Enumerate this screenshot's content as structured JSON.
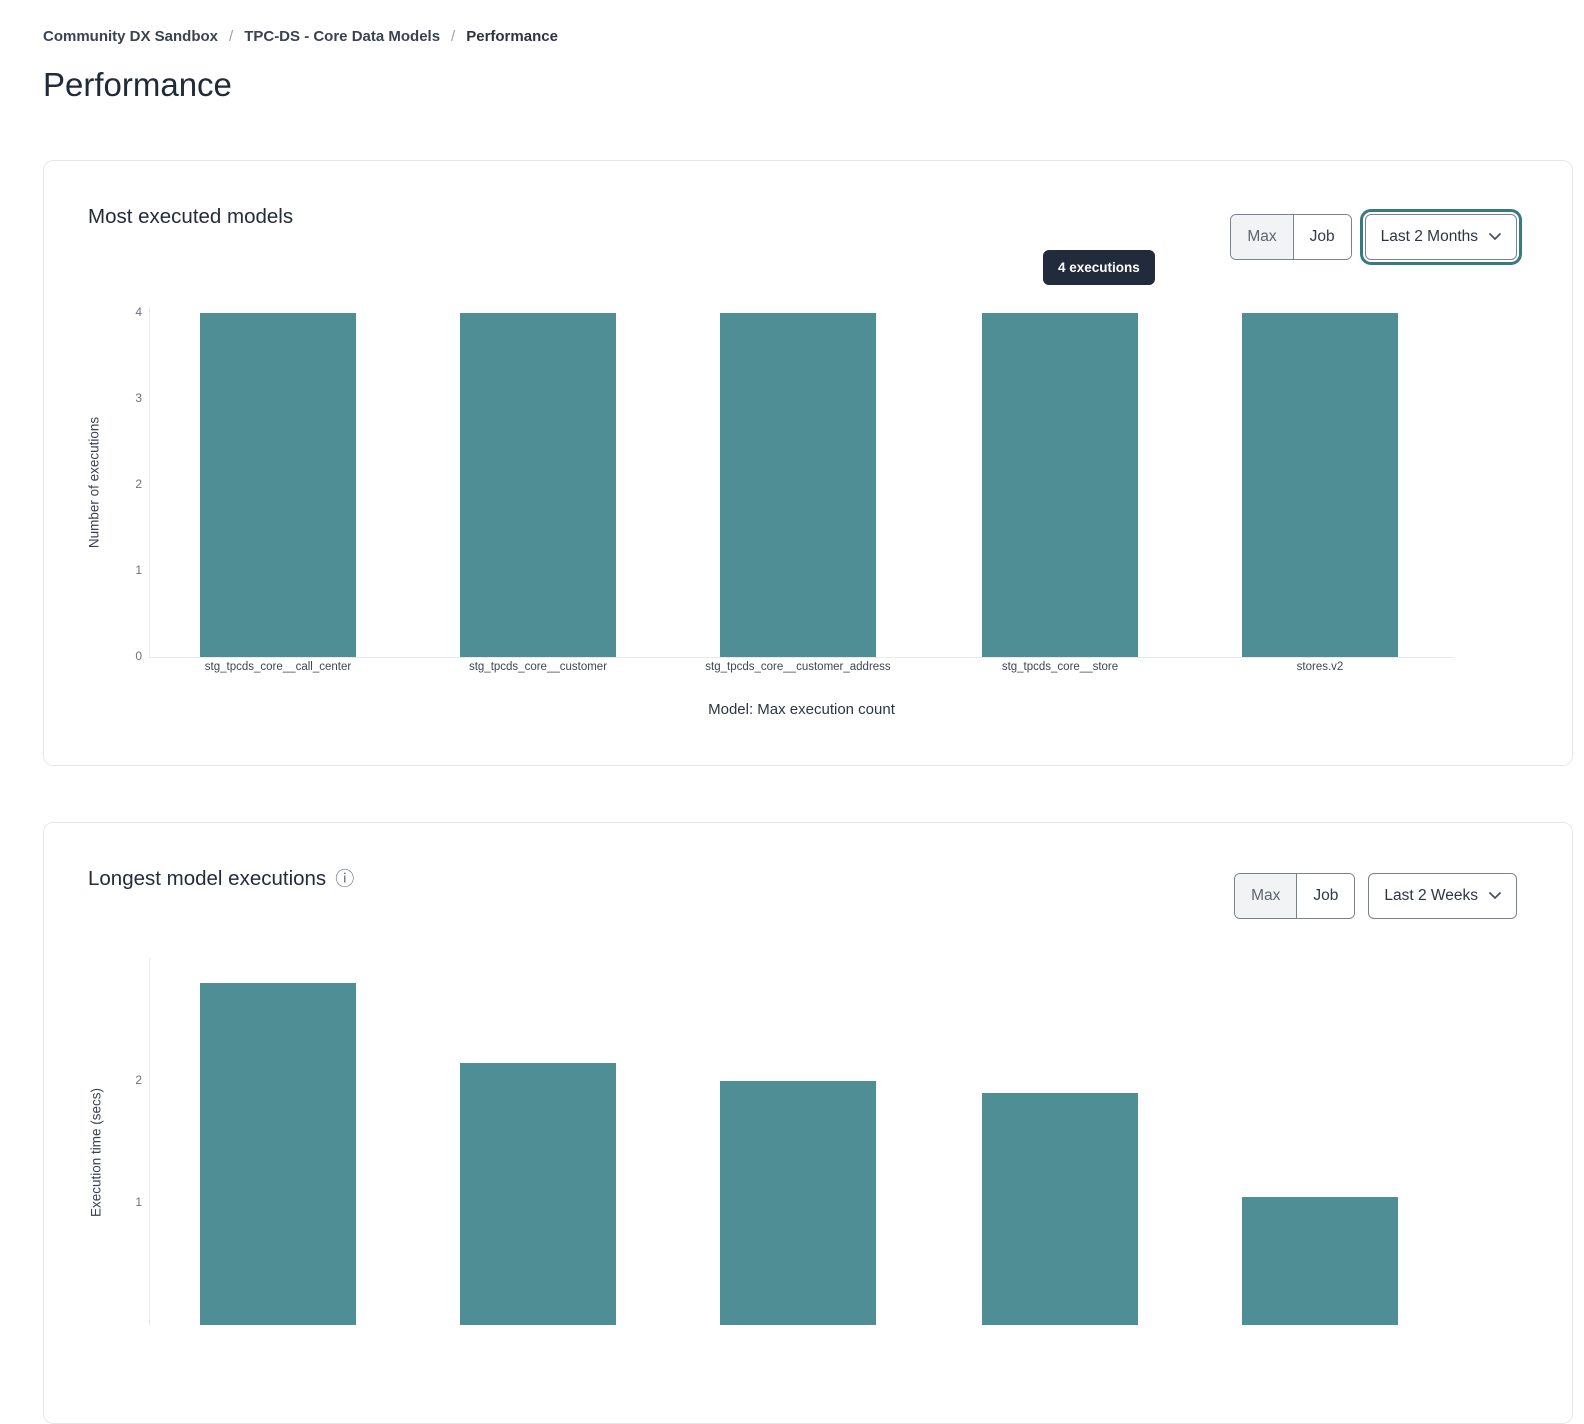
{
  "breadcrumb": {
    "separator": "/",
    "items": [
      "Community DX Sandbox",
      "TPC-DS - Core Data Models",
      "Performance"
    ]
  },
  "page": {
    "title": "Performance"
  },
  "cards": [
    {
      "title": "Most executed models",
      "toggle": {
        "options": [
          "Max",
          "Job"
        ],
        "selected": "Max"
      },
      "period_select": {
        "value": "Last 2 Months",
        "state": "focused"
      },
      "tooltip": "4 executions"
    },
    {
      "title": "Longest model executions",
      "info_icon": "ⓘ",
      "toggle": {
        "options": [
          "Max",
          "Job"
        ],
        "selected": "Max"
      },
      "period_select": {
        "value": "Last 2 Weeks",
        "state": "default"
      }
    }
  ],
  "chart_data": [
    {
      "type": "bar",
      "title": "Most executed models",
      "categories": [
        "stg_tpcds_core__call_center",
        "stg_tpcds_core__customer",
        "stg_tpcds_core__customer_address",
        "stg_tpcds_core__store",
        "stores.v2"
      ],
      "values": [
        4,
        4,
        4,
        4,
        4
      ],
      "xlabel": "Model: Max execution count",
      "ylabel": "Number of executions",
      "yticks": [
        0,
        1,
        2,
        3,
        4
      ],
      "ylim": [
        0,
        4
      ],
      "grid": false,
      "legend": false,
      "bar_color": "#4f8e94",
      "hover_tooltip": {
        "bar_index": 3,
        "text": "4 executions"
      }
    },
    {
      "type": "bar",
      "title": "Longest model executions",
      "categories": [
        "",
        "",
        "",
        "",
        ""
      ],
      "values": [
        2.8,
        2.15,
        2.0,
        1.9,
        1.05
      ],
      "ylabel": "Execution time (secs)",
      "yticks": [
        1,
        2
      ],
      "ylim": [
        0,
        2.9
      ],
      "grid": false,
      "legend": false,
      "bar_color": "#4f8e94",
      "note": "x-axis labels and lower part of bars clipped by bottom edge of viewport"
    }
  ],
  "colors": {
    "bar": "#4f8e94",
    "tooltip_bg": "#212b3b",
    "focus_ring": "#377b80",
    "card_border": "#e5e7eb",
    "control_border": "#7a8290"
  }
}
